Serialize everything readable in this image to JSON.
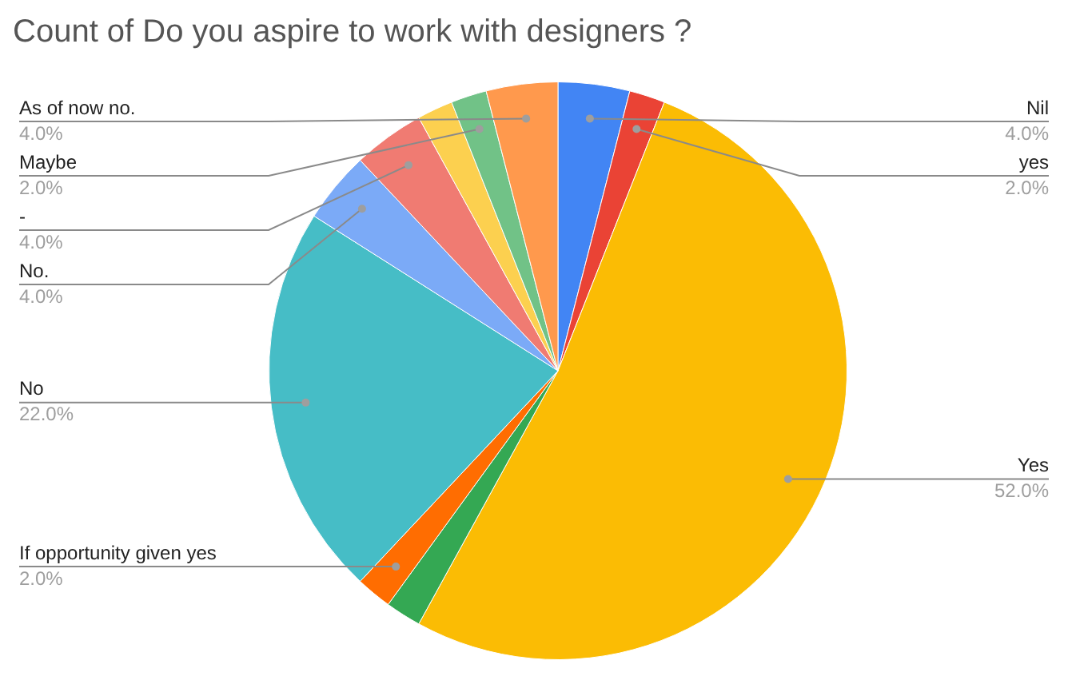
{
  "chart_data": {
    "type": "pie",
    "title": "Count of Do you aspire to work with designers ?",
    "categories": [
      "Nil",
      "yes",
      "Yes",
      null,
      "If opportunity given yes",
      "No",
      "No.",
      "-",
      null,
      "Maybe",
      "As of now no."
    ],
    "values": [
      4,
      2,
      52,
      2,
      2,
      22,
      4,
      4,
      2,
      2,
      4
    ],
    "colors": [
      "#4285f4",
      "#ea4335",
      "#fbbc04",
      "#34a853",
      "#ff6d01",
      "#46bdc6",
      "#7baaf7",
      "#f07b72",
      "#fcd04f",
      "#71c287",
      "#ff994d"
    ],
    "value_labels": [
      "4.0%",
      "2.0%",
      "52.0%",
      null,
      "2.0%",
      "22.0%",
      "4.0%",
      "4.0%",
      null,
      "2.0%",
      "4.0%"
    ],
    "legend": false
  }
}
